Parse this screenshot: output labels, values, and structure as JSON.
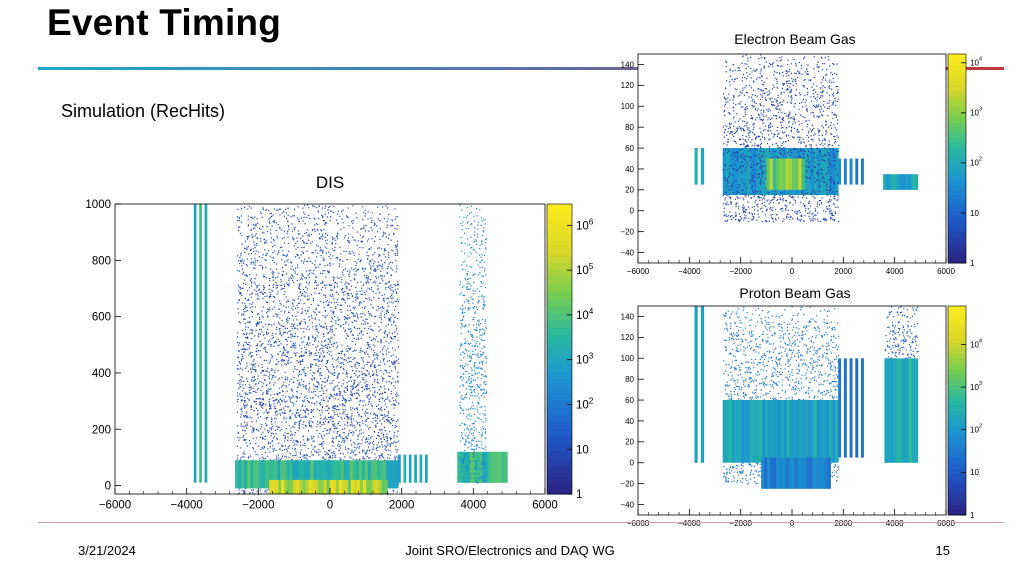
{
  "slide": {
    "title": "Event Timing",
    "subtitle": "Simulation (RecHits)",
    "accent_colors": {
      "teal": "#1aa7c9",
      "red": "#c0393e"
    },
    "footer": {
      "date": "3/21/2024",
      "center": "Joint SRO/Electronics and DAQ WG",
      "page": "15"
    }
  },
  "chart_data": [
    {
      "type": "heatmap",
      "title": "DIS",
      "xlim": [
        -6000,
        6000
      ],
      "ylim": [
        -30,
        1000
      ],
      "x_ticks": [
        "−6000",
        "−4000",
        "−2000",
        "0",
        "2000",
        "4000",
        "6000"
      ],
      "x_tick_values": [
        -6000,
        -4000,
        -2000,
        0,
        2000,
        4000,
        6000
      ],
      "y_ticks": [
        "0",
        "200",
        "400",
        "600",
        "800",
        "1000"
      ],
      "y_tick_values": [
        0,
        200,
        400,
        600,
        800,
        1000
      ],
      "colorbar": {
        "scale": "log",
        "range": [
          1,
          3000000
        ],
        "ticks": [
          "1",
          "10",
          "10^2",
          "10^3",
          "10^4",
          "10^5",
          "10^6"
        ],
        "tick_values": [
          1,
          10,
          100,
          1000,
          10000,
          100000,
          1000000
        ]
      },
      "regions": [
        {
          "x": [
            -3800,
            -3350
          ],
          "y": [
            10,
            1000
          ],
          "level": 0.55,
          "kind": "stripes"
        },
        {
          "x": [
            -2600,
            1900
          ],
          "y": [
            -30,
            1000
          ],
          "level": 0.08,
          "kind": "scatter"
        },
        {
          "x": [
            -2650,
            1900
          ],
          "y": [
            -10,
            90
          ],
          "level": 0.6,
          "kind": "dense"
        },
        {
          "x": [
            -1700,
            1600
          ],
          "y": [
            -30,
            20
          ],
          "level": 0.85,
          "kind": "dense"
        },
        {
          "x": [
            1900,
            2800
          ],
          "y": [
            10,
            110
          ],
          "level": 0.5,
          "kind": "stripes"
        },
        {
          "x": [
            3550,
            4950
          ],
          "y": [
            10,
            120
          ],
          "level": 0.6,
          "kind": "dense"
        },
        {
          "x": [
            3600,
            4350
          ],
          "y": [
            10,
            1000
          ],
          "level": 0.3,
          "kind": "scatter"
        }
      ]
    },
    {
      "type": "heatmap",
      "title": "Electron Beam Gas",
      "xlim": [
        -6000,
        6000
      ],
      "ylim": [
        -50,
        150
      ],
      "x_ticks": [
        "−6000",
        "−4000",
        "−2000",
        "0",
        "2000",
        "4000",
        "6000"
      ],
      "x_tick_values": [
        -6000,
        -4000,
        -2000,
        0,
        2000,
        4000,
        6000
      ],
      "y_ticks": [
        "−40",
        "−20",
        "0",
        "20",
        "40",
        "60",
        "80",
        "100",
        "120",
        "140"
      ],
      "y_tick_values": [
        -40,
        -20,
        0,
        20,
        40,
        60,
        80,
        100,
        120,
        140
      ],
      "colorbar": {
        "scale": "log",
        "range": [
          1,
          15000
        ],
        "ticks": [
          "1",
          "10",
          "10^2",
          "10^3",
          "10^4"
        ],
        "tick_values": [
          1,
          10,
          100,
          1000,
          10000
        ]
      },
      "regions": [
        {
          "x": [
            -3800,
            -3300
          ],
          "y": [
            25,
            60
          ],
          "level": 0.5,
          "kind": "stripes"
        },
        {
          "x": [
            -2700,
            1800
          ],
          "y": [
            15,
            60
          ],
          "level": 0.45,
          "kind": "dense"
        },
        {
          "x": [
            -2700,
            1800
          ],
          "y": [
            -10,
            150
          ],
          "level": 0.05,
          "kind": "scatter"
        },
        {
          "x": [
            -1000,
            500
          ],
          "y": [
            20,
            50
          ],
          "level": 0.75,
          "kind": "dense"
        },
        {
          "x": [
            1800,
            2800
          ],
          "y": [
            25,
            50
          ],
          "level": 0.35,
          "kind": "stripes"
        },
        {
          "x": [
            3550,
            4900
          ],
          "y": [
            20,
            35
          ],
          "level": 0.5,
          "kind": "dense"
        }
      ]
    },
    {
      "type": "heatmap",
      "title": "Proton Beam Gas",
      "xlim": [
        -6000,
        6000
      ],
      "ylim": [
        -50,
        150
      ],
      "x_ticks": [
        "−6000",
        "−4000",
        "−2000",
        "0",
        "2000",
        "4000",
        "6000"
      ],
      "x_tick_values": [
        -6000,
        -4000,
        -2000,
        0,
        2000,
        4000,
        6000
      ],
      "y_ticks": [
        "−40",
        "−20",
        "0",
        "20",
        "40",
        "60",
        "80",
        "100",
        "120",
        "140"
      ],
      "y_tick_values": [
        -40,
        -20,
        0,
        20,
        40,
        60,
        80,
        100,
        120,
        140
      ],
      "colorbar": {
        "scale": "log",
        "range": [
          1,
          80000
        ],
        "ticks": [
          "1",
          "10",
          "10^2",
          "10^3",
          "10^4"
        ],
        "tick_values": [
          1,
          10,
          100,
          1000,
          10000
        ]
      },
      "regions": [
        {
          "x": [
            -3800,
            -3300
          ],
          "y": [
            0,
            150
          ],
          "level": 0.55,
          "kind": "stripes"
        },
        {
          "x": [
            -2700,
            1800
          ],
          "y": [
            -20,
            150
          ],
          "level": 0.25,
          "kind": "scatter"
        },
        {
          "x": [
            -2700,
            1800
          ],
          "y": [
            0,
            60
          ],
          "level": 0.5,
          "kind": "dense"
        },
        {
          "x": [
            -1200,
            1500
          ],
          "y": [
            -25,
            5
          ],
          "level": 0.35,
          "kind": "dense"
        },
        {
          "x": [
            1800,
            2800
          ],
          "y": [
            5,
            100
          ],
          "level": 0.3,
          "kind": "stripes"
        },
        {
          "x": [
            3600,
            4900
          ],
          "y": [
            0,
            100
          ],
          "level": 0.55,
          "kind": "dense"
        },
        {
          "x": [
            3600,
            4900
          ],
          "y": [
            100,
            150
          ],
          "level": 0.15,
          "kind": "scatter"
        }
      ]
    }
  ]
}
